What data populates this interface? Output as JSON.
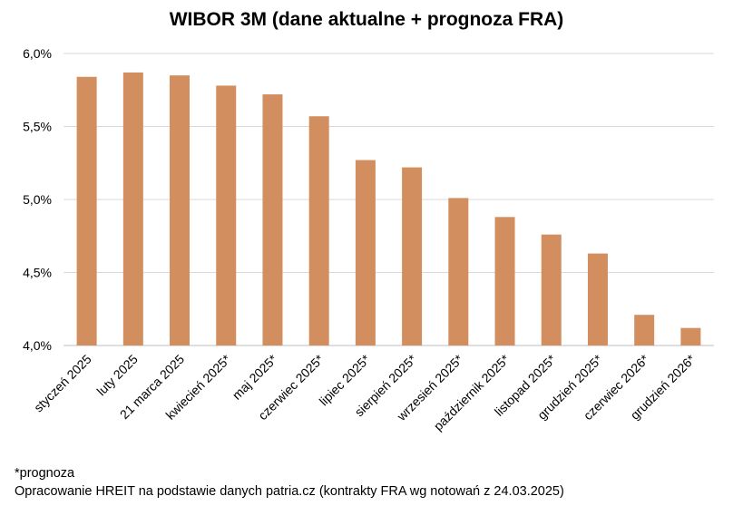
{
  "chart_data": {
    "type": "bar",
    "title": "WIBOR 3M (dane aktualne + prognoza FRA)",
    "categories": [
      "styczeń 2025",
      "luty 2025",
      "21 marca 2025",
      "kwiecień 2025*",
      "maj 2025*",
      "czerwiec 2025*",
      "lipiec 2025*",
      "sierpień 2025*",
      "wrzesień 2025*",
      "październik 2025*",
      "listopad 2025*",
      "grudzień 2025*",
      "czerwiec 2026*",
      "grudzień 2026*"
    ],
    "values": [
      5.84,
      5.87,
      5.85,
      5.78,
      5.72,
      5.57,
      5.27,
      5.22,
      5.01,
      4.88,
      4.76,
      4.63,
      4.21,
      4.12
    ],
    "ylim": [
      4.0,
      6.0
    ],
    "yticks": [
      "4,0%",
      "4,5%",
      "5,0%",
      "5,5%",
      "6,0%"
    ],
    "ytick_values": [
      4.0,
      4.5,
      5.0,
      5.5,
      6.0
    ],
    "xlabel": "",
    "ylabel": "",
    "grid": true,
    "bar_color": "#D28E5E"
  },
  "footnotes": {
    "forecast_note": "*prognoza",
    "source": "Opracowanie HREIT na podstawie danych patria.cz (kontrakty FRA wg notowań z 24.03.2025)"
  }
}
